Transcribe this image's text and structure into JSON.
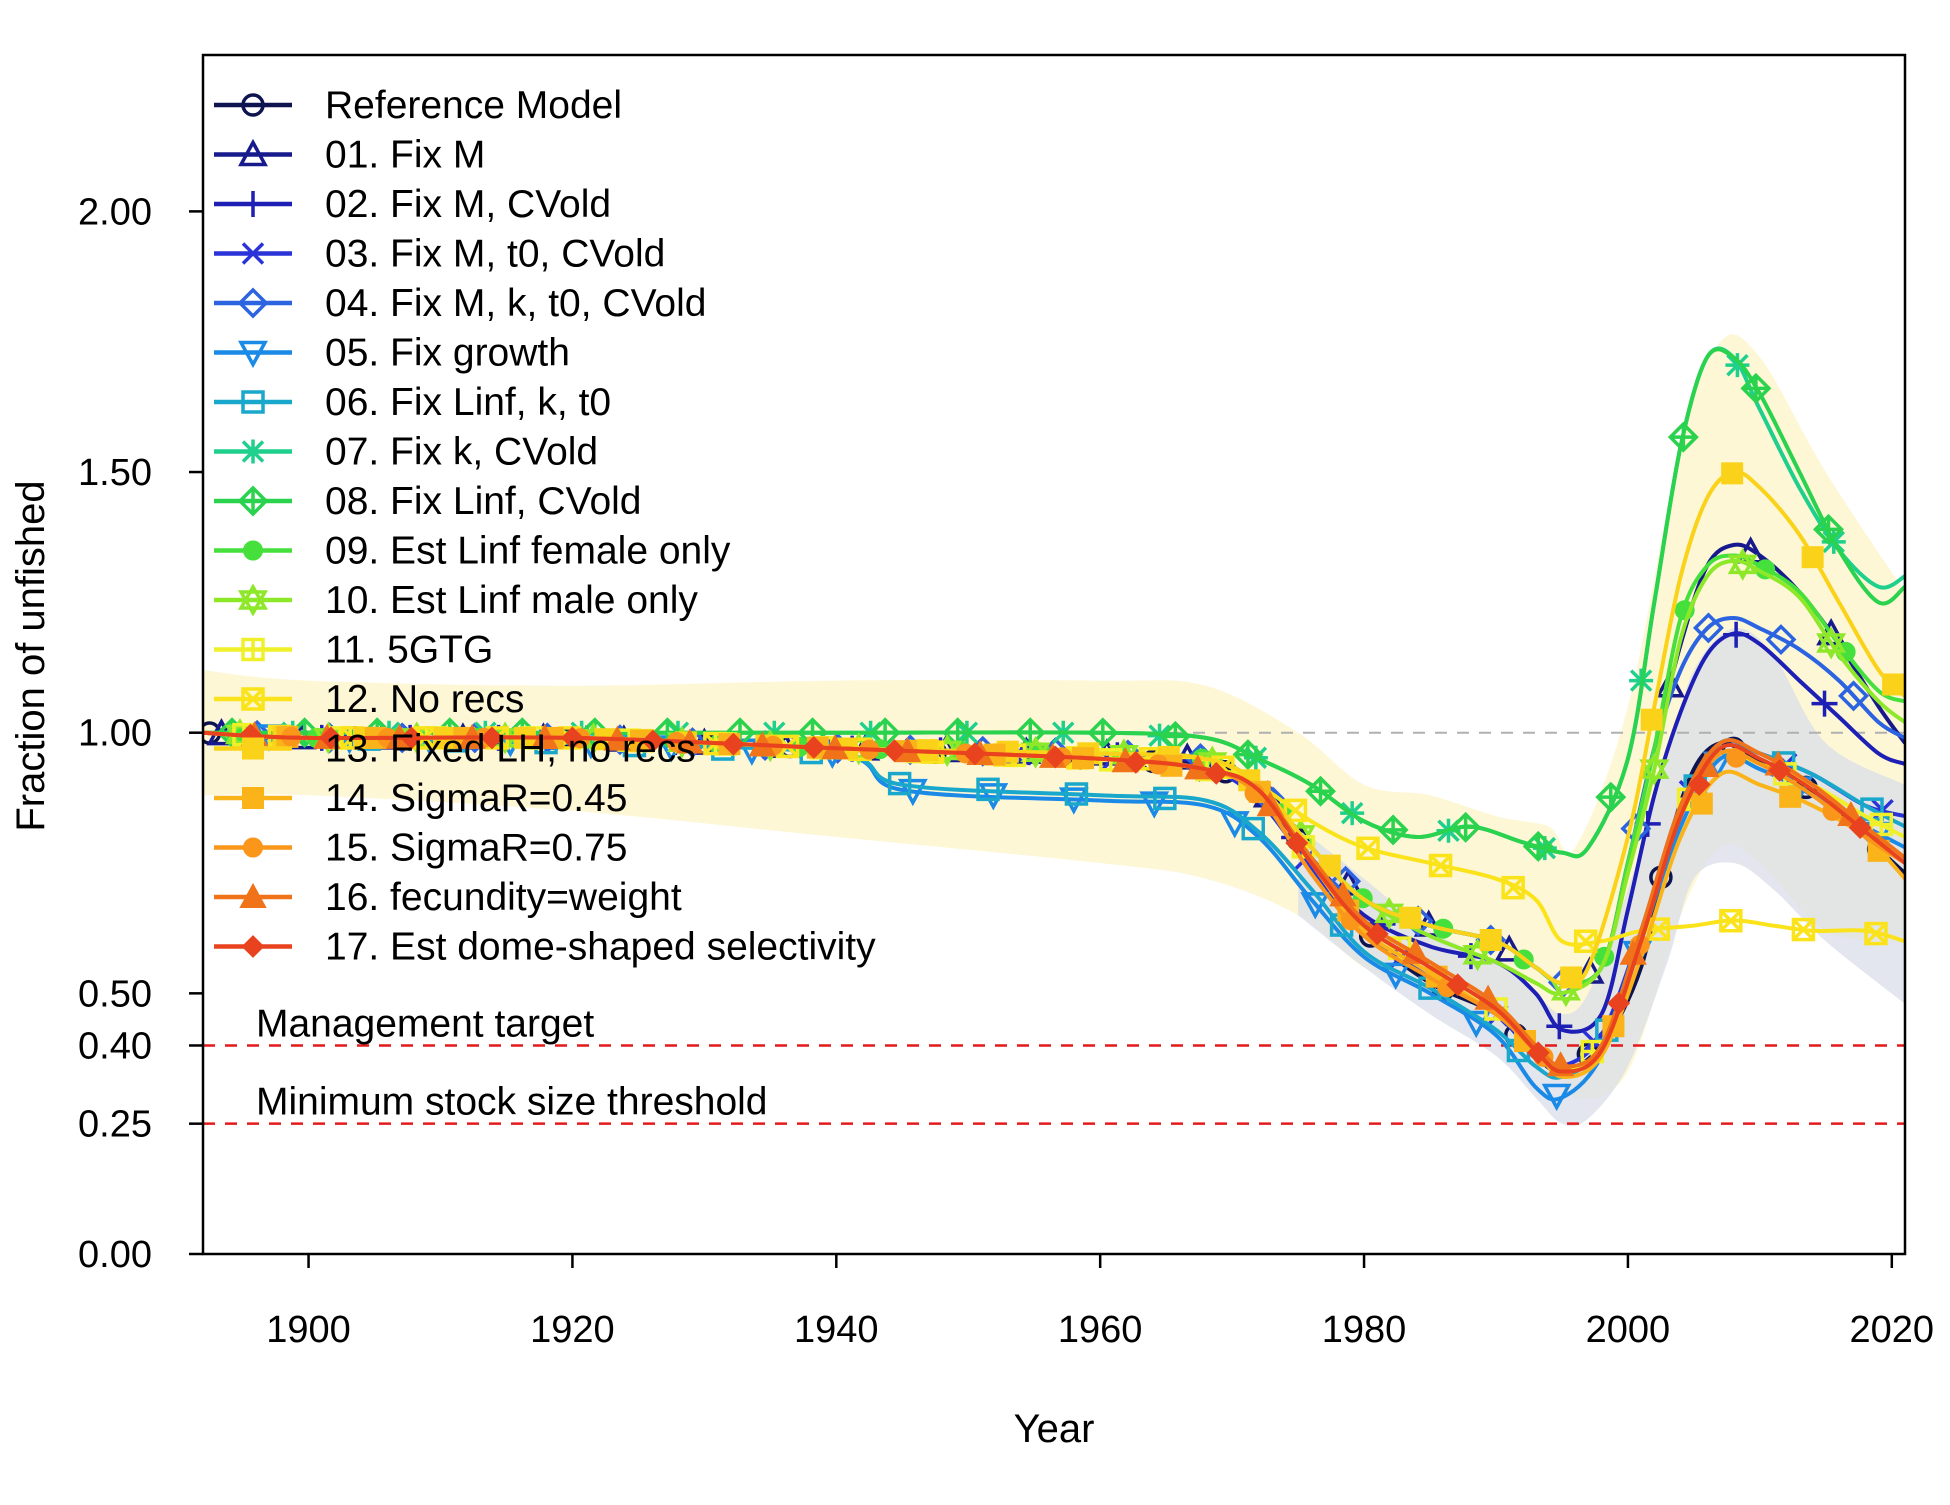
{
  "chart_data": {
    "type": "line",
    "xlabel": "Year",
    "ylabel": "Fraction of unfished",
    "xlim": [
      1892,
      2021
    ],
    "ylim": [
      0,
      2.3
    ],
    "x_ticks": [
      1900,
      1920,
      1940,
      1960,
      1980,
      2000,
      2020
    ],
    "x_tick_labels": [
      "1900",
      "1920",
      "1940",
      "1960",
      "1980",
      "2000",
      "2020"
    ],
    "y_ticks": [
      0,
      0.25,
      0.4,
      0.5,
      1.0,
      1.5,
      2.0
    ],
    "y_tick_labels": [
      "0.00",
      "0.25",
      "0.40",
      "0.50",
      "1.00",
      "1.50",
      "2.00"
    ],
    "legend_position": "top-left",
    "reference_lines": [
      {
        "label": "Management target",
        "y": 0.4,
        "color": "#e31a1c",
        "style": "dashed"
      },
      {
        "label": "Minimum stock size threshold",
        "y": 0.25,
        "color": "#e31a1c",
        "style": "dashed"
      },
      {
        "label": "",
        "y": 1.0,
        "color": "#b0b0b0",
        "style": "dashed"
      }
    ],
    "uncertainty_bands": [
      {
        "color": "#fdf6cf",
        "x": [
          1892,
          1900,
          1920,
          1940,
          1960,
          1968,
          1975,
          1980,
          1985,
          1990,
          1994,
          1996,
          2000,
          2004,
          2007,
          2010,
          2015,
          2021
        ],
        "upper": [
          1.12,
          1.1,
          1.09,
          1.1,
          1.1,
          1.09,
          1.0,
          0.9,
          0.88,
          0.84,
          0.82,
          0.78,
          1.05,
          1.55,
          1.75,
          1.72,
          1.5,
          1.27
        ],
        "lower": [
          0.88,
          0.88,
          0.85,
          0.8,
          0.75,
          0.72,
          0.65,
          0.55,
          0.5,
          0.42,
          0.38,
          0.3,
          0.35,
          0.65,
          0.78,
          0.75,
          0.62,
          0.6
        ]
      },
      {
        "color": "#dadde8",
        "x": [
          1975,
          1980,
          1985,
          1990,
          1993,
          1995,
          1997,
          2000,
          2003,
          2005,
          2008,
          2011,
          2015,
          2021
        ],
        "upper": [
          0.82,
          0.72,
          0.62,
          0.56,
          0.5,
          0.46,
          0.5,
          0.7,
          0.95,
          1.12,
          1.2,
          1.15,
          0.98,
          0.9
        ],
        "lower": [
          0.65,
          0.55,
          0.46,
          0.38,
          0.3,
          0.25,
          0.26,
          0.36,
          0.56,
          0.72,
          0.75,
          0.7,
          0.6,
          0.48
        ]
      }
    ],
    "series": [
      {
        "name": "Reference Model",
        "color": "#0d1450",
        "marker": "circle",
        "x": [
          1892,
          1900,
          1920,
          1940,
          1960,
          1968,
          1972,
          1976,
          1980,
          1985,
          1990,
          1993,
          1995,
          1998,
          2001,
          2003,
          2005,
          2007,
          2009,
          2012,
          2015,
          2018,
          2021
        ],
        "y": [
          1.0,
          0.99,
          0.99,
          0.97,
          0.95,
          0.94,
          0.9,
          0.76,
          0.62,
          0.52,
          0.46,
          0.38,
          0.35,
          0.4,
          0.55,
          0.78,
          0.93,
          0.98,
          0.96,
          0.92,
          0.87,
          0.8,
          0.73
        ]
      },
      {
        "name": "01. Fix M",
        "color": "#171a8c",
        "marker": "triangle",
        "x": [
          1892,
          1900,
          1920,
          1940,
          1960,
          1968,
          1972,
          1976,
          1980,
          1985,
          1990,
          1993,
          1995,
          1998,
          2000,
          2002,
          2004,
          2006,
          2008,
          2010,
          2013,
          2016,
          2019,
          2021
        ],
        "y": [
          1.0,
          0.99,
          0.99,
          0.97,
          0.96,
          0.95,
          0.9,
          0.78,
          0.68,
          0.63,
          0.6,
          0.55,
          0.52,
          0.55,
          0.75,
          0.97,
          1.17,
          1.32,
          1.36,
          1.34,
          1.27,
          1.17,
          1.05,
          0.98
        ]
      },
      {
        "name": "02. Fix M, CVold",
        "color": "#1e1fb4",
        "marker": "plus",
        "x": [
          1892,
          1900,
          1920,
          1940,
          1960,
          1968,
          1972,
          1976,
          1980,
          1985,
          1990,
          1993,
          1995,
          1998,
          2000,
          2002,
          2004,
          2006,
          2008,
          2010,
          2013,
          2016,
          2019,
          2021
        ],
        "y": [
          1.0,
          0.99,
          0.99,
          0.97,
          0.96,
          0.94,
          0.88,
          0.76,
          0.65,
          0.59,
          0.56,
          0.5,
          0.43,
          0.46,
          0.66,
          0.88,
          1.04,
          1.15,
          1.19,
          1.17,
          1.1,
          1.03,
          0.96,
          0.94
        ]
      },
      {
        "name": "03. Fix M, t0, CVold",
        "color": "#2a32d8",
        "marker": "x",
        "x": [
          1892,
          1900,
          1920,
          1940,
          1960,
          1968,
          1972,
          1976,
          1980,
          1985,
          1990,
          1993,
          1995,
          1998,
          2001,
          2004,
          2007,
          2010,
          2014,
          2018,
          2021
        ],
        "y": [
          1.0,
          0.99,
          0.99,
          0.97,
          0.95,
          0.93,
          0.87,
          0.74,
          0.62,
          0.53,
          0.46,
          0.38,
          0.36,
          0.42,
          0.62,
          0.86,
          0.98,
          0.96,
          0.92,
          0.86,
          0.84
        ]
      },
      {
        "name": "04. Fix M, k, t0, CVold",
        "color": "#2b63e0",
        "marker": "diamond",
        "x": [
          1892,
          1900,
          1920,
          1940,
          1960,
          1968,
          1972,
          1976,
          1980,
          1985,
          1990,
          1993,
          1995,
          1998,
          2000,
          2002,
          2004,
          2006,
          2008,
          2010,
          2013,
          2016,
          2019,
          2021
        ],
        "y": [
          1.0,
          0.99,
          0.99,
          0.97,
          0.96,
          0.95,
          0.9,
          0.78,
          0.68,
          0.63,
          0.6,
          0.55,
          0.52,
          0.55,
          0.75,
          0.97,
          1.12,
          1.2,
          1.22,
          1.2,
          1.16,
          1.1,
          1.02,
          0.99
        ]
      },
      {
        "name": "05. Fix growth",
        "color": "#1a8ae6",
        "marker": "triangle-down",
        "x": [
          1892,
          1900,
          1920,
          1940,
          1945,
          1960,
          1968,
          1972,
          1976,
          1980,
          1985,
          1990,
          1993,
          1995,
          1998,
          2001,
          2004,
          2007,
          2010,
          2014,
          2018,
          2021
        ],
        "y": [
          1.0,
          0.99,
          0.98,
          0.96,
          0.89,
          0.87,
          0.86,
          0.8,
          0.68,
          0.57,
          0.5,
          0.42,
          0.32,
          0.3,
          0.38,
          0.6,
          0.82,
          0.95,
          0.93,
          0.88,
          0.82,
          0.78
        ]
      },
      {
        "name": "06. Fix Linf, k, t0",
        "color": "#1aa7cc",
        "marker": "square",
        "x": [
          1892,
          1900,
          1920,
          1940,
          1945,
          1960,
          1968,
          1972,
          1976,
          1980,
          1985,
          1990,
          1993,
          1995,
          1998,
          2001,
          2004,
          2007,
          2010,
          2014,
          2018,
          2021
        ],
        "y": [
          1.0,
          0.99,
          0.98,
          0.96,
          0.9,
          0.88,
          0.87,
          0.81,
          0.7,
          0.58,
          0.51,
          0.43,
          0.36,
          0.34,
          0.4,
          0.62,
          0.85,
          0.98,
          0.96,
          0.92,
          0.86,
          0.82
        ]
      },
      {
        "name": "07. Fix k, CVold",
        "color": "#1fcf8c",
        "marker": "asterisk",
        "x": [
          1892,
          1900,
          1920,
          1940,
          1960,
          1968,
          1972,
          1976,
          1980,
          1984,
          1988,
          1992,
          1995,
          1997,
          2000,
          2002,
          2004,
          2006,
          2008,
          2010,
          2013,
          2016,
          2019,
          2021
        ],
        "y": [
          1.0,
          1.0,
          1.0,
          1.0,
          1.0,
          0.99,
          0.95,
          0.9,
          0.83,
          0.8,
          0.82,
          0.79,
          0.77,
          0.78,
          0.95,
          1.25,
          1.55,
          1.72,
          1.72,
          1.62,
          1.47,
          1.35,
          1.28,
          1.3
        ]
      },
      {
        "name": "08. Fix Linf, CVold",
        "color": "#2ad24e",
        "marker": "diamond-plus",
        "x": [
          1892,
          1900,
          1920,
          1940,
          1960,
          1968,
          1972,
          1976,
          1980,
          1984,
          1988,
          1992,
          1995,
          1997,
          2000,
          2002,
          2004,
          2006,
          2008,
          2010,
          2013,
          2016,
          2019,
          2021
        ],
        "y": [
          1.0,
          1.0,
          1.0,
          1.0,
          1.0,
          0.99,
          0.95,
          0.9,
          0.83,
          0.8,
          0.82,
          0.79,
          0.77,
          0.78,
          0.95,
          1.25,
          1.55,
          1.72,
          1.72,
          1.65,
          1.5,
          1.35,
          1.25,
          1.28
        ]
      },
      {
        "name": "09. Est Linf female only",
        "color": "#46e03c",
        "marker": "circle-filled",
        "x": [
          1892,
          1900,
          1920,
          1940,
          1960,
          1968,
          1972,
          1976,
          1980,
          1985,
          1990,
          1993,
          1995,
          1998,
          2000,
          2002,
          2004,
          2006,
          2008,
          2010,
          2013,
          2016,
          2019,
          2021
        ],
        "y": [
          1.0,
          0.99,
          0.99,
          0.97,
          0.96,
          0.95,
          0.9,
          0.78,
          0.68,
          0.63,
          0.6,
          0.55,
          0.52,
          0.55,
          0.75,
          0.97,
          1.22,
          1.32,
          1.34,
          1.32,
          1.27,
          1.17,
          1.08,
          1.06
        ]
      },
      {
        "name": "10. Est Linf male only",
        "color": "#8ee82a",
        "marker": "star",
        "x": [
          1892,
          1900,
          1920,
          1940,
          1960,
          1968,
          1972,
          1976,
          1980,
          1985,
          1990,
          1993,
          1995,
          1998,
          2000,
          2002,
          2004,
          2006,
          2008,
          2010,
          2013,
          2016,
          2019,
          2021
        ],
        "y": [
          1.0,
          0.99,
          0.99,
          0.97,
          0.96,
          0.95,
          0.9,
          0.78,
          0.68,
          0.61,
          0.56,
          0.52,
          0.5,
          0.55,
          0.73,
          0.93,
          1.18,
          1.3,
          1.33,
          1.31,
          1.26,
          1.15,
          1.06,
          1.02
        ]
      },
      {
        "name": "11. 5GTG",
        "color": "#f0f02a",
        "marker": "square-plus",
        "x": [
          1892,
          1900,
          1920,
          1940,
          1960,
          1968,
          1972,
          1976,
          1980,
          1985,
          1990,
          1993,
          1995,
          1998,
          2001,
          2004,
          2007,
          2010,
          2014,
          2018,
          2021
        ],
        "y": [
          1.0,
          0.99,
          0.99,
          0.97,
          0.95,
          0.93,
          0.9,
          0.76,
          0.63,
          0.55,
          0.47,
          0.4,
          0.35,
          0.4,
          0.6,
          0.85,
          0.96,
          0.94,
          0.9,
          0.84,
          0.8
        ]
      },
      {
        "name": "12. No recs",
        "color": "#fae31a",
        "marker": "square-x",
        "x": [
          1892,
          1900,
          1920,
          1940,
          1960,
          1968,
          1972,
          1976,
          1980,
          1985,
          1990,
          1993,
          1995,
          1998,
          2001,
          2005,
          2008,
          2011,
          2014,
          2018,
          2021
        ],
        "y": [
          1.0,
          0.99,
          0.99,
          0.97,
          0.95,
          0.95,
          0.9,
          0.83,
          0.78,
          0.75,
          0.72,
          0.68,
          0.6,
          0.6,
          0.62,
          0.63,
          0.64,
          0.63,
          0.62,
          0.62,
          0.6
        ]
      },
      {
        "name": "13. Fixed LH, no recs",
        "color": "#fad21a",
        "marker": "square-filled",
        "x": [
          1892,
          1900,
          1920,
          1940,
          1960,
          1968,
          1972,
          1976,
          1980,
          1985,
          1990,
          1993,
          1995,
          1997,
          2000,
          2002,
          2004,
          2006,
          2008,
          2010,
          2013,
          2016,
          2019,
          2021
        ],
        "y": [
          1.0,
          0.99,
          0.99,
          0.97,
          0.96,
          0.95,
          0.9,
          0.78,
          0.68,
          0.63,
          0.6,
          0.55,
          0.52,
          0.55,
          0.8,
          1.05,
          1.3,
          1.45,
          1.5,
          1.47,
          1.38,
          1.25,
          1.12,
          1.07
        ]
      },
      {
        "name": "14. SigmaR=0.45",
        "color": "#fab41a",
        "marker": "square-filled",
        "x": [
          1892,
          1900,
          1920,
          1940,
          1960,
          1968,
          1972,
          1976,
          1980,
          1985,
          1990,
          1993,
          1995,
          1998,
          2001,
          2004,
          2007,
          2010,
          2014,
          2018,
          2021
        ],
        "y": [
          1.0,
          0.99,
          0.99,
          0.97,
          0.95,
          0.93,
          0.89,
          0.75,
          0.62,
          0.54,
          0.46,
          0.39,
          0.34,
          0.38,
          0.57,
          0.8,
          0.92,
          0.9,
          0.86,
          0.8,
          0.72
        ]
      },
      {
        "name": "15. SigmaR=0.75",
        "color": "#fa961a",
        "marker": "circle-filled",
        "x": [
          1892,
          1900,
          1920,
          1940,
          1960,
          1968,
          1972,
          1976,
          1980,
          1985,
          1990,
          1993,
          1995,
          1998,
          2001,
          2004,
          2007,
          2010,
          2014,
          2018,
          2021
        ],
        "y": [
          1.0,
          0.99,
          0.99,
          0.97,
          0.95,
          0.93,
          0.88,
          0.73,
          0.61,
          0.53,
          0.46,
          0.39,
          0.35,
          0.39,
          0.6,
          0.84,
          0.96,
          0.94,
          0.88,
          0.8,
          0.75
        ]
      },
      {
        "name": "16. fecundity=weight",
        "color": "#f0731a",
        "marker": "triangle-filled",
        "x": [
          1892,
          1900,
          1920,
          1940,
          1960,
          1968,
          1972,
          1976,
          1980,
          1985,
          1990,
          1993,
          1995,
          1998,
          2001,
          2004,
          2007,
          2010,
          2014,
          2018,
          2021
        ],
        "y": [
          1.0,
          0.99,
          0.99,
          0.97,
          0.95,
          0.93,
          0.89,
          0.76,
          0.64,
          0.56,
          0.48,
          0.4,
          0.36,
          0.4,
          0.62,
          0.86,
          0.98,
          0.96,
          0.9,
          0.82,
          0.76
        ]
      },
      {
        "name": "17. Est dome-shaped selectivity",
        "color": "#e8421e",
        "marker": "diamond-filled",
        "x": [
          1892,
          1900,
          1920,
          1940,
          1960,
          1968,
          1972,
          1976,
          1980,
          1985,
          1990,
          1993,
          1995,
          1998,
          2001,
          2004,
          2007,
          2010,
          2014,
          2018,
          2021
        ],
        "y": [
          1.0,
          0.99,
          0.99,
          0.97,
          0.95,
          0.93,
          0.89,
          0.75,
          0.63,
          0.55,
          0.47,
          0.39,
          0.35,
          0.39,
          0.6,
          0.84,
          0.97,
          0.95,
          0.89,
          0.81,
          0.75
        ]
      }
    ]
  }
}
